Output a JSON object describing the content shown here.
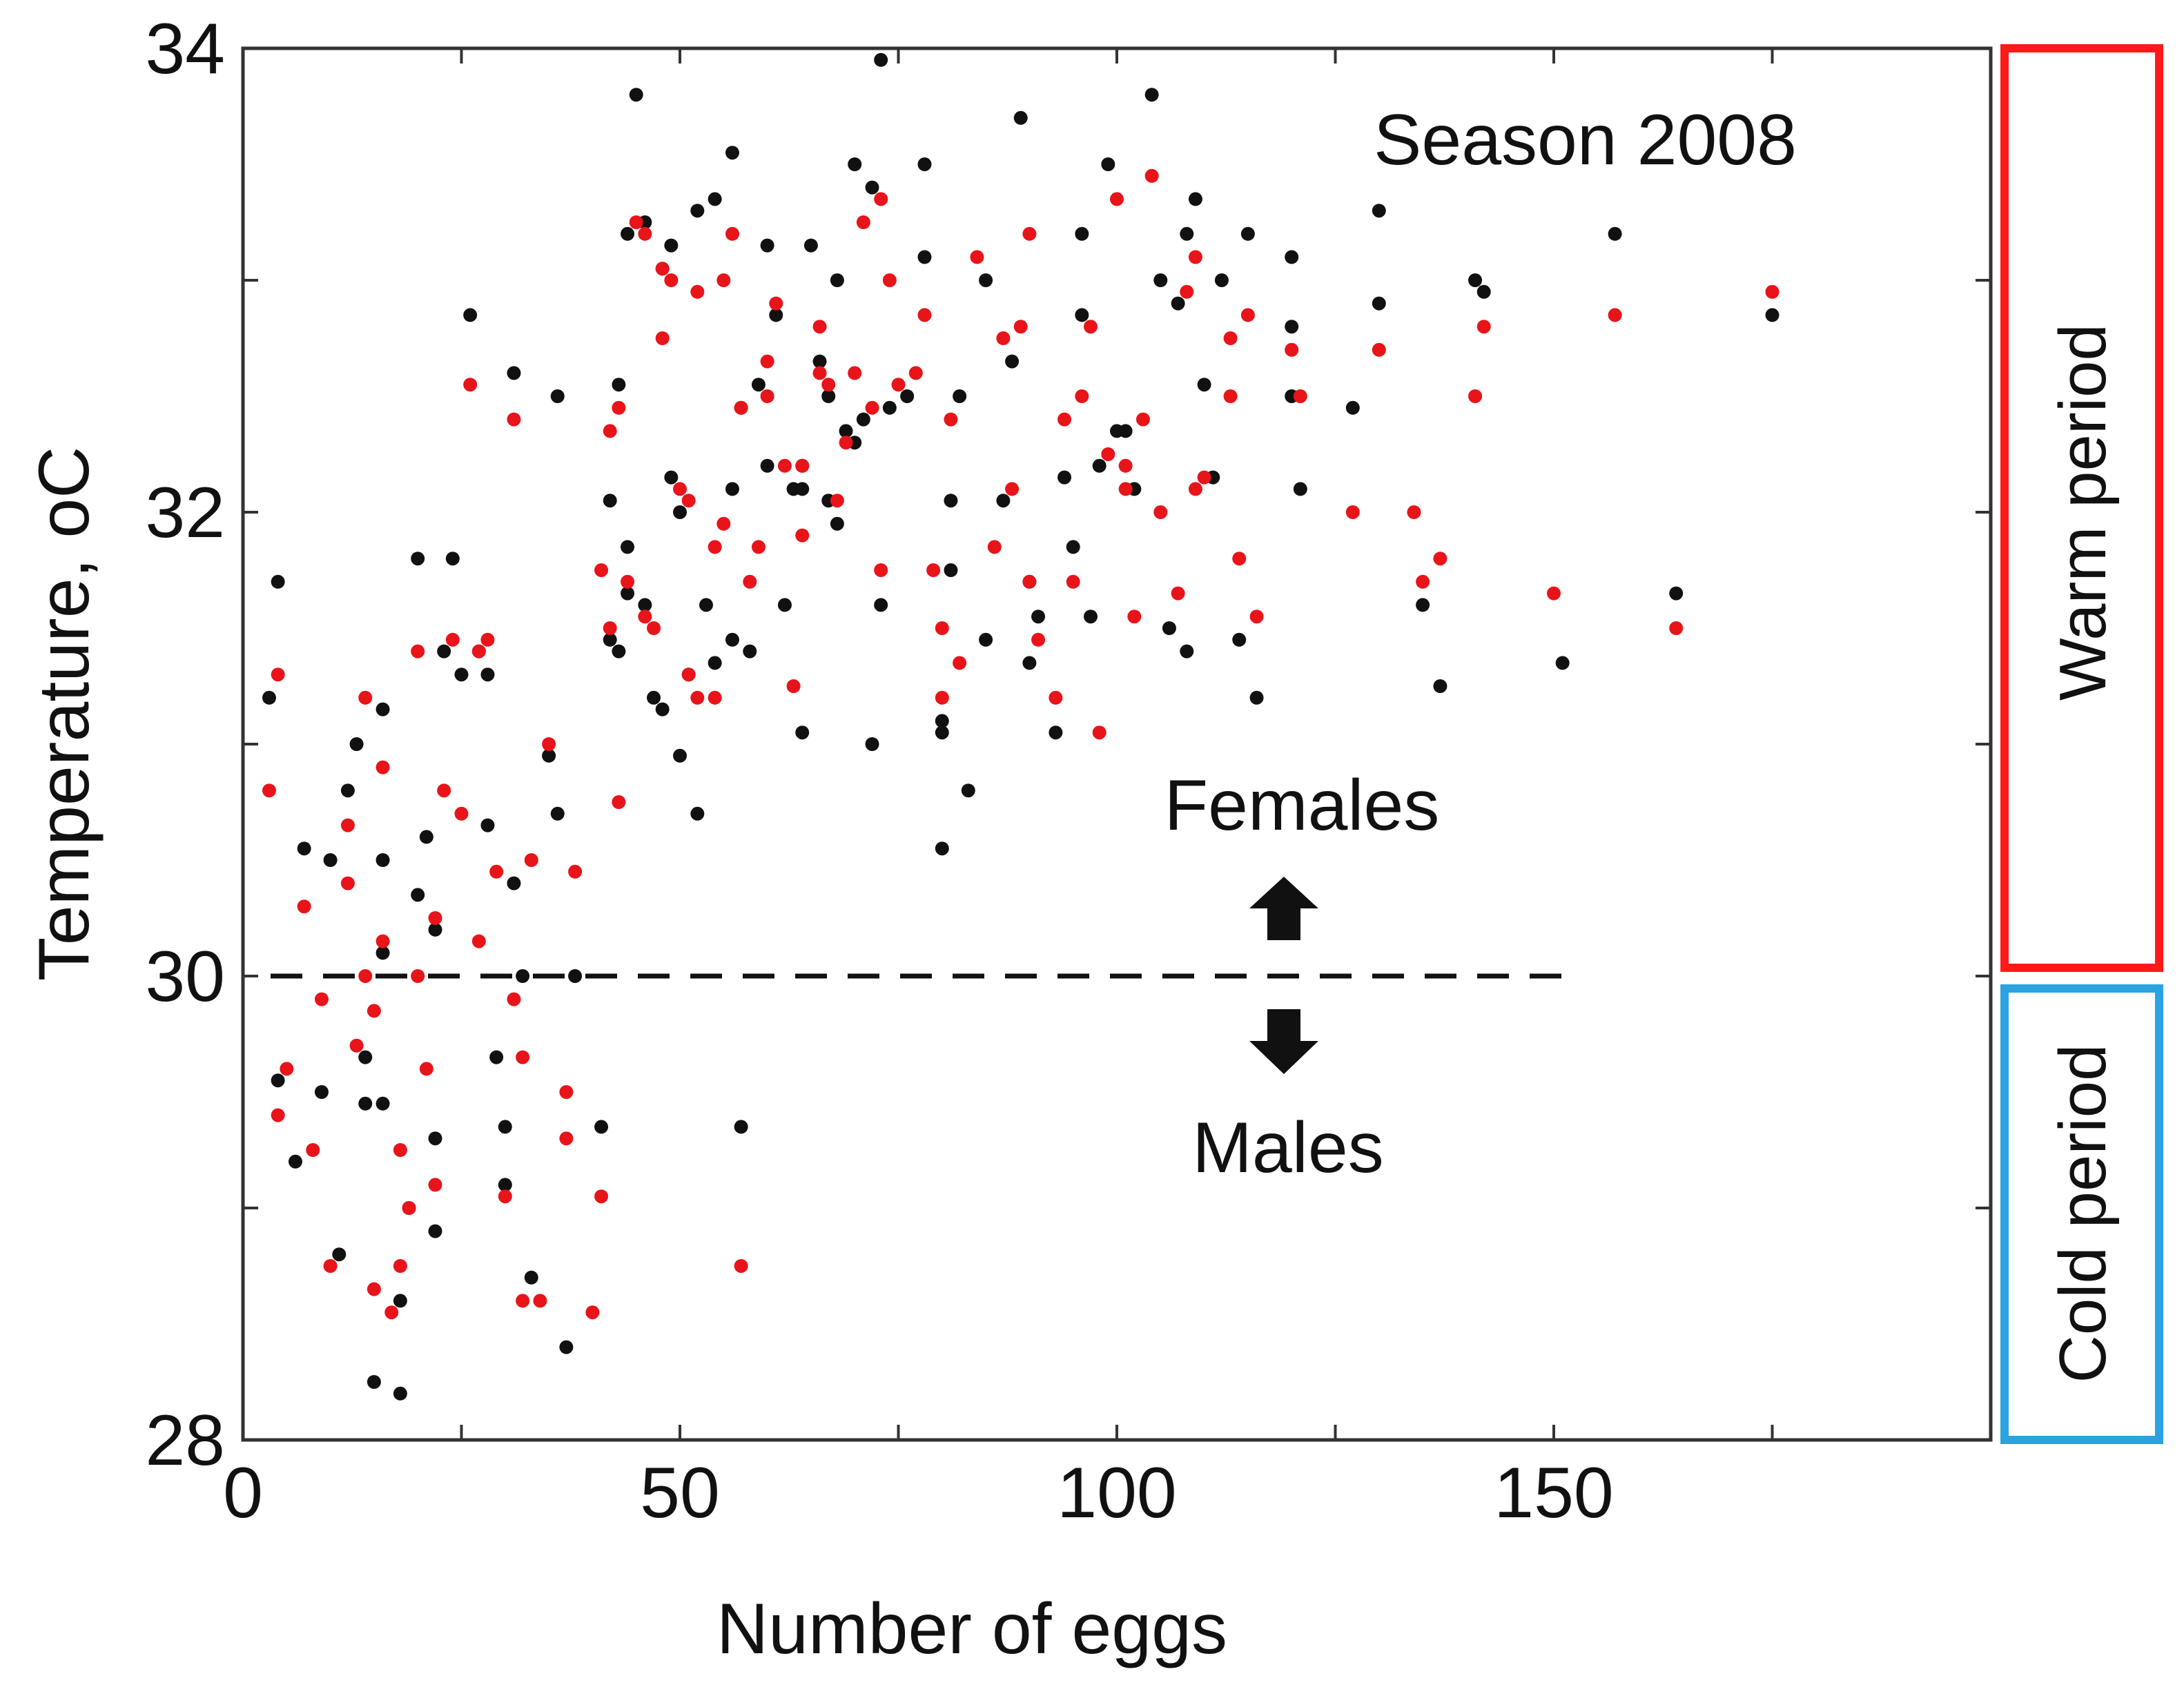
{
  "chart_data": {
    "type": "scatter",
    "title": "",
    "xlabel": "Number of eggs",
    "ylabel": "Temperature, oC",
    "xlim": [
      0,
      200
    ],
    "ylim": [
      28,
      34
    ],
    "xticks": [
      0,
      50,
      100,
      150
    ],
    "yticks": [
      28,
      30,
      32,
      34
    ],
    "minor_yticks": [
      29,
      31,
      33
    ],
    "minor_xticks": [
      25,
      75,
      125,
      175
    ],
    "grid": false,
    "colors": {
      "series_red": "#e8141a",
      "series_black": "#111111",
      "warm": "#ff1a1a",
      "cold": "#2aa3e0"
    },
    "threshold": {
      "y": 30,
      "x_end": 153,
      "style": "dashed"
    },
    "annotations": {
      "season": "Season 2008",
      "females": "Females",
      "males": "Males"
    },
    "periods": [
      {
        "label": "Warm period",
        "y_range": [
          30,
          34
        ],
        "color": "#ff1a1a"
      },
      {
        "label": "Cold period",
        "y_range": [
          28,
          30
        ],
        "color": "#2aa3e0"
      }
    ],
    "series": [
      {
        "color": "#111111",
        "points": [
          [
            3,
            31.2
          ],
          [
            4,
            31.7
          ],
          [
            4,
            29.55
          ],
          [
            6,
            29.2
          ],
          [
            7,
            30.55
          ],
          [
            9,
            29.5
          ],
          [
            10,
            30.5
          ],
          [
            11,
            28.8
          ],
          [
            12,
            30.8
          ],
          [
            13,
            31.0
          ],
          [
            14,
            29.65
          ],
          [
            14,
            29.45
          ],
          [
            15,
            28.25
          ],
          [
            16,
            30.5
          ],
          [
            16,
            31.15
          ],
          [
            16,
            30.1
          ],
          [
            16,
            29.45
          ],
          [
            18,
            28.2
          ],
          [
            18,
            28.6
          ],
          [
            19,
            29.0
          ],
          [
            20,
            30.35
          ],
          [
            20,
            31.8
          ],
          [
            21,
            30.6
          ],
          [
            22,
            30.2
          ],
          [
            22,
            29.3
          ],
          [
            22,
            28.9
          ],
          [
            23,
            31.4
          ],
          [
            24,
            31.8
          ],
          [
            25,
            31.3
          ],
          [
            26,
            32.85
          ],
          [
            27,
            31.4
          ],
          [
            28,
            30.65
          ],
          [
            28,
            31.3
          ],
          [
            29,
            29.65
          ],
          [
            30,
            29.35
          ],
          [
            30,
            29.1
          ],
          [
            31,
            32.6
          ],
          [
            31,
            30.4
          ],
          [
            32,
            30.0
          ],
          [
            33,
            28.7
          ],
          [
            35,
            30.95
          ],
          [
            36,
            32.5
          ],
          [
            36,
            30.7
          ],
          [
            37,
            28.4
          ],
          [
            38,
            30.0
          ],
          [
            41,
            29.35
          ],
          [
            42,
            31.45
          ],
          [
            42,
            32.05
          ],
          [
            43,
            31.4
          ],
          [
            43,
            32.55
          ],
          [
            44,
            33.2
          ],
          [
            44,
            31.85
          ],
          [
            44,
            31.65
          ],
          [
            45,
            33.8
          ],
          [
            46,
            33.25
          ],
          [
            46,
            31.6
          ],
          [
            47,
            31.2
          ],
          [
            48,
            33.05
          ],
          [
            48,
            31.15
          ],
          [
            49,
            33.15
          ],
          [
            49,
            32.15
          ],
          [
            50,
            32.0
          ],
          [
            50,
            30.95
          ],
          [
            51,
            31.3
          ],
          [
            52,
            30.7
          ],
          [
            52,
            33.3
          ],
          [
            53,
            31.6
          ],
          [
            54,
            31.35
          ],
          [
            54,
            33.35
          ],
          [
            56,
            32.1
          ],
          [
            56,
            33.55
          ],
          [
            56,
            31.45
          ],
          [
            57,
            32.45
          ],
          [
            57,
            29.35
          ],
          [
            58,
            31.4
          ],
          [
            59,
            32.55
          ],
          [
            60,
            33.15
          ],
          [
            60,
            32.2
          ],
          [
            61,
            32.85
          ],
          [
            62,
            31.6
          ],
          [
            63,
            32.1
          ],
          [
            64,
            32.1
          ],
          [
            64,
            32.2
          ],
          [
            64,
            31.05
          ],
          [
            65,
            33.15
          ],
          [
            66,
            32.65
          ],
          [
            67,
            32.5
          ],
          [
            67,
            32.05
          ],
          [
            68,
            33.0
          ],
          [
            68,
            31.95
          ],
          [
            69,
            32.35
          ],
          [
            70,
            33.5
          ],
          [
            70,
            32.3
          ],
          [
            71,
            32.4
          ],
          [
            72,
            33.4
          ],
          [
            72,
            31.0
          ],
          [
            73,
            31.6
          ],
          [
            73,
            33.95
          ],
          [
            74,
            32.45
          ],
          [
            76,
            32.5
          ],
          [
            78,
            33.5
          ],
          [
            78,
            33.1
          ],
          [
            80,
            30.55
          ],
          [
            80,
            31.05
          ],
          [
            80,
            31.1
          ],
          [
            81,
            32.05
          ],
          [
            81,
            31.75
          ],
          [
            82,
            32.5
          ],
          [
            83,
            30.8
          ],
          [
            85,
            33.0
          ],
          [
            85,
            31.45
          ],
          [
            87,
            32.05
          ],
          [
            88,
            32.65
          ],
          [
            89,
            33.7
          ],
          [
            90,
            31.35
          ],
          [
            90,
            31.7
          ],
          [
            91,
            31.55
          ],
          [
            93,
            31.05
          ],
          [
            94,
            32.15
          ],
          [
            95,
            31.85
          ],
          [
            96,
            33.2
          ],
          [
            96,
            32.85
          ],
          [
            97,
            31.55
          ],
          [
            98,
            32.2
          ],
          [
            99,
            33.5
          ],
          [
            100,
            32.35
          ],
          [
            101,
            32.35
          ],
          [
            102,
            32.1
          ],
          [
            104,
            33.8
          ],
          [
            105,
            33.0
          ],
          [
            106,
            31.5
          ],
          [
            107,
            32.9
          ],
          [
            108,
            33.2
          ],
          [
            108,
            31.4
          ],
          [
            109,
            33.35
          ],
          [
            110,
            32.55
          ],
          [
            111,
            32.15
          ],
          [
            112,
            33.0
          ],
          [
            114,
            31.45
          ],
          [
            115,
            33.2
          ],
          [
            116,
            31.2
          ],
          [
            120,
            33.1
          ],
          [
            120,
            32.8
          ],
          [
            120,
            32.5
          ],
          [
            121,
            32.1
          ],
          [
            127,
            32.45
          ],
          [
            130,
            33.3
          ],
          [
            130,
            32.9
          ],
          [
            135,
            31.6
          ],
          [
            137,
            31.25
          ],
          [
            141,
            33.0
          ],
          [
            142,
            32.95
          ],
          [
            151,
            31.35
          ],
          [
            157,
            33.2
          ],
          [
            164,
            31.65
          ],
          [
            175,
            32.85
          ]
        ]
      },
      {
        "color": "#e8141a",
        "points": [
          [
            3,
            30.8
          ],
          [
            4,
            31.3
          ],
          [
            4,
            29.4
          ],
          [
            5,
            29.6
          ],
          [
            7,
            30.3
          ],
          [
            8,
            29.25
          ],
          [
            9,
            29.9
          ],
          [
            10,
            28.75
          ],
          [
            12,
            30.65
          ],
          [
            12,
            30.4
          ],
          [
            13,
            29.7
          ],
          [
            14,
            31.2
          ],
          [
            14,
            30.0
          ],
          [
            15,
            28.65
          ],
          [
            15,
            29.85
          ],
          [
            16,
            30.9
          ],
          [
            16,
            30.15
          ],
          [
            17,
            28.55
          ],
          [
            18,
            29.25
          ],
          [
            18,
            28.75
          ],
          [
            19,
            29.0
          ],
          [
            20,
            31.4
          ],
          [
            20,
            30.0
          ],
          [
            21,
            29.6
          ],
          [
            22,
            30.25
          ],
          [
            22,
            29.1
          ],
          [
            23,
            30.8
          ],
          [
            24,
            31.45
          ],
          [
            25,
            30.7
          ],
          [
            26,
            32.55
          ],
          [
            27,
            30.15
          ],
          [
            27,
            31.4
          ],
          [
            28,
            31.45
          ],
          [
            29,
            30.45
          ],
          [
            30,
            29.05
          ],
          [
            31,
            32.4
          ],
          [
            31,
            29.9
          ],
          [
            32,
            29.65
          ],
          [
            32,
            28.6
          ],
          [
            33,
            30.5
          ],
          [
            34,
            28.6
          ],
          [
            35,
            31.0
          ],
          [
            37,
            29.3
          ],
          [
            37,
            29.5
          ],
          [
            38,
            30.45
          ],
          [
            40,
            28.55
          ],
          [
            41,
            29.05
          ],
          [
            41,
            31.75
          ],
          [
            42,
            31.5
          ],
          [
            42,
            32.35
          ],
          [
            43,
            30.75
          ],
          [
            43,
            32.45
          ],
          [
            44,
            31.7
          ],
          [
            45,
            33.25
          ],
          [
            46,
            33.2
          ],
          [
            46,
            31.55
          ],
          [
            47,
            31.5
          ],
          [
            48,
            32.75
          ],
          [
            48,
            33.05
          ],
          [
            49,
            33.0
          ],
          [
            50,
            32.1
          ],
          [
            51,
            32.05
          ],
          [
            51,
            31.3
          ],
          [
            52,
            31.2
          ],
          [
            52,
            32.95
          ],
          [
            54,
            31.85
          ],
          [
            54,
            31.2
          ],
          [
            55,
            33.0
          ],
          [
            55,
            31.95
          ],
          [
            56,
            33.2
          ],
          [
            57,
            28.75
          ],
          [
            57,
            32.45
          ],
          [
            58,
            31.7
          ],
          [
            59,
            31.85
          ],
          [
            60,
            32.65
          ],
          [
            60,
            32.5
          ],
          [
            61,
            32.9
          ],
          [
            62,
            32.2
          ],
          [
            63,
            31.25
          ],
          [
            64,
            31.9
          ],
          [
            64,
            32.2
          ],
          [
            66,
            32.8
          ],
          [
            66,
            32.6
          ],
          [
            67,
            32.55
          ],
          [
            68,
            32.05
          ],
          [
            69,
            32.3
          ],
          [
            70,
            32.6
          ],
          [
            71,
            33.25
          ],
          [
            72,
            32.45
          ],
          [
            73,
            31.75
          ],
          [
            73,
            33.35
          ],
          [
            74,
            33.0
          ],
          [
            75,
            32.55
          ],
          [
            77,
            32.6
          ],
          [
            78,
            32.85
          ],
          [
            79,
            31.75
          ],
          [
            80,
            31.2
          ],
          [
            80,
            31.5
          ],
          [
            81,
            32.4
          ],
          [
            82,
            31.35
          ],
          [
            84,
            33.1
          ],
          [
            86,
            31.85
          ],
          [
            87,
            32.75
          ],
          [
            88,
            32.1
          ],
          [
            89,
            32.8
          ],
          [
            90,
            33.2
          ],
          [
            90,
            31.7
          ],
          [
            91,
            31.45
          ],
          [
            93,
            31.2
          ],
          [
            94,
            32.4
          ],
          [
            95,
            31.7
          ],
          [
            96,
            32.5
          ],
          [
            97,
            32.8
          ],
          [
            98,
            31.05
          ],
          [
            99,
            32.25
          ],
          [
            100,
            33.35
          ],
          [
            101,
            32.1
          ],
          [
            101,
            32.2
          ],
          [
            102,
            31.55
          ],
          [
            103,
            32.4
          ],
          [
            104,
            33.45
          ],
          [
            105,
            32.0
          ],
          [
            107,
            31.65
          ],
          [
            108,
            32.95
          ],
          [
            109,
            33.1
          ],
          [
            109,
            32.1
          ],
          [
            110,
            32.15
          ],
          [
            113,
            32.75
          ],
          [
            113,
            32.5
          ],
          [
            114,
            31.8
          ],
          [
            115,
            32.85
          ],
          [
            116,
            31.55
          ],
          [
            120,
            32.7
          ],
          [
            121,
            32.5
          ],
          [
            127,
            32.0
          ],
          [
            130,
            32.7
          ],
          [
            134,
            32.0
          ],
          [
            135,
            31.7
          ],
          [
            137,
            31.8
          ],
          [
            141,
            32.5
          ],
          [
            142,
            32.8
          ],
          [
            150,
            31.65
          ],
          [
            157,
            32.85
          ],
          [
            164,
            31.5
          ],
          [
            175,
            32.95
          ]
        ]
      }
    ]
  }
}
